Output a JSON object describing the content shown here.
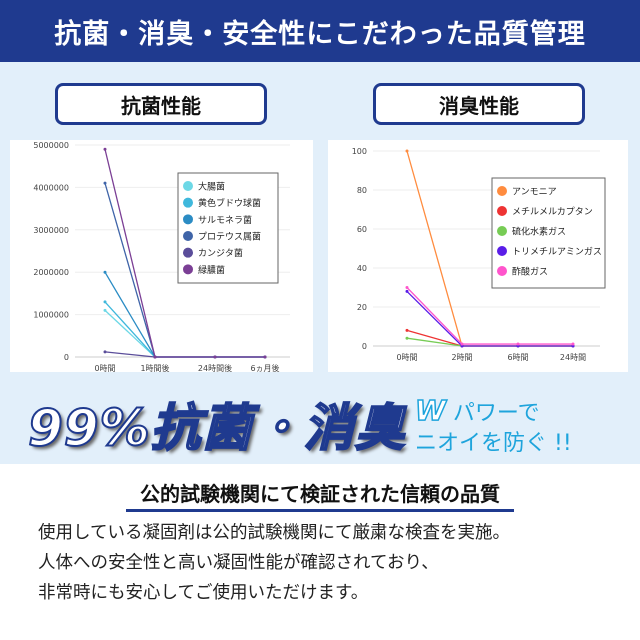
{
  "header": {
    "title": "抗菌・消臭・安全性にこだわった品質管理"
  },
  "panels": {
    "antibacterial": "抗菌性能",
    "deodorant": "消臭性能"
  },
  "headline": "99%抗菌・消臭",
  "tagline": {
    "w": "W",
    "line1": "パワーで",
    "line2": "ニオイを防ぐ !!"
  },
  "subheading": "公的試験機関にて検証された信頼の品質",
  "body": {
    "line1": "使用している凝固剤は公的試験機関にて厳粛な検査を実施。",
    "line2": "人体への安全性と高い凝固性能が確認されており、",
    "line3": "非常時にも安心してご使用いただけます。"
  },
  "chart_data": [
    {
      "type": "line",
      "categories": [
        "0時間",
        "1時間後",
        "24時間後",
        "6ヵ月後"
      ],
      "ylim": [
        0,
        5000000
      ],
      "yticks": [
        "0",
        "1000000",
        "2000000",
        "3000000",
        "4000000",
        "5000000"
      ],
      "legend": "top-right",
      "series": [
        {
          "name": "大腸菌",
          "color": "#6dd8e6",
          "values": [
            1100000,
            0,
            0,
            0
          ]
        },
        {
          "name": "黄色ブドウ球菌",
          "color": "#3fb8dc",
          "values": [
            1300000,
            0,
            0,
            0
          ]
        },
        {
          "name": "サルモネラ菌",
          "color": "#2b8cc4",
          "values": [
            2000000,
            0,
            0,
            0
          ]
        },
        {
          "name": "プロテウス属菌",
          "color": "#3f64a8",
          "values": [
            4100000,
            0,
            0,
            0
          ]
        },
        {
          "name": "カンジタ菌",
          "color": "#5a4d9a",
          "values": [
            120000,
            0,
            0,
            0
          ]
        },
        {
          "name": "緑膿菌",
          "color": "#7b3f95",
          "values": [
            4900000,
            0,
            0,
            0
          ]
        }
      ]
    },
    {
      "type": "line",
      "categories": [
        "0時間",
        "2時間",
        "6時間",
        "24時間"
      ],
      "ylim": [
        0,
        100
      ],
      "yticks": [
        "0",
        "20",
        "40",
        "60",
        "80",
        "100"
      ],
      "legend": "top-right",
      "series": [
        {
          "name": "アンモニア",
          "color": "#ff8c3f",
          "values": [
            100,
            0,
            0,
            0
          ]
        },
        {
          "name": "メチルメルカプタン",
          "color": "#ee3333",
          "values": [
            8,
            0,
            0,
            0
          ]
        },
        {
          "name": "硫化水素ガス",
          "color": "#77cc55",
          "values": [
            4,
            0,
            0,
            0
          ]
        },
        {
          "name": "トリメチルアミンガス",
          "color": "#5a1de8",
          "values": [
            28,
            0,
            0,
            0
          ]
        },
        {
          "name": "酢酸ガス",
          "color": "#ff55cc",
          "values": [
            30,
            1,
            1,
            1
          ]
        }
      ]
    }
  ]
}
